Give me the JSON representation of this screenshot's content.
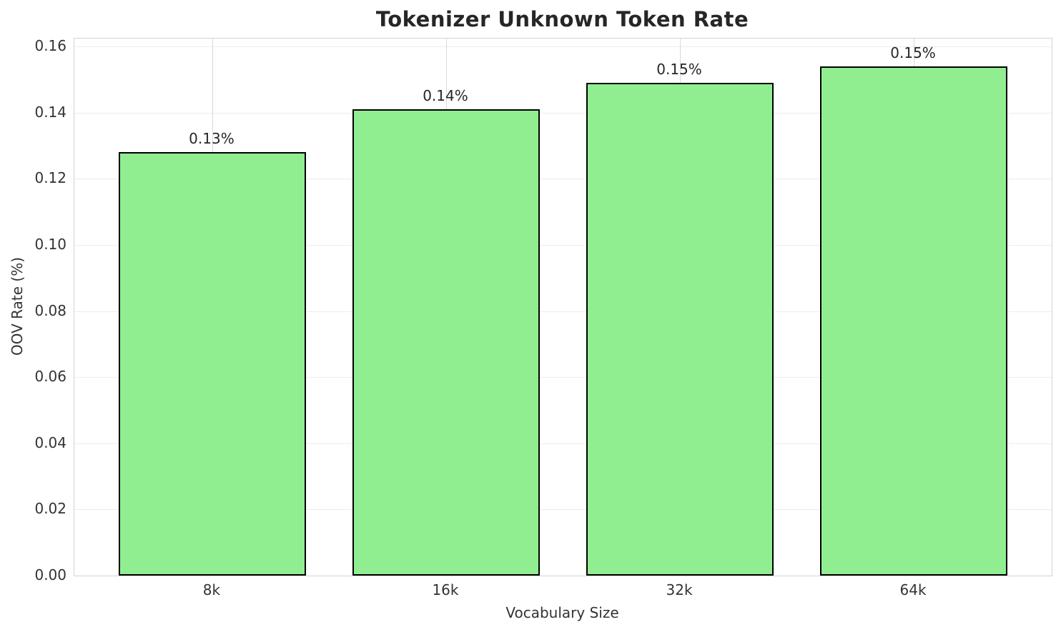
{
  "chart_data": {
    "type": "bar",
    "title": "Tokenizer Unknown Token Rate",
    "xlabel": "Vocabulary Size",
    "ylabel": "OOV Rate (%)",
    "categories": [
      "8k",
      "16k",
      "32k",
      "64k"
    ],
    "values": [
      0.128,
      0.141,
      0.149,
      0.154
    ],
    "bar_labels": [
      "0.13%",
      "0.14%",
      "0.15%",
      "0.15%"
    ],
    "yticks": [
      0.0,
      0.02,
      0.04,
      0.06,
      0.08,
      0.1,
      0.12,
      0.14,
      0.16
    ],
    "ytick_labels": [
      "0.00",
      "0.02",
      "0.04",
      "0.06",
      "0.08",
      "0.10",
      "0.12",
      "0.14",
      "0.16"
    ],
    "ylim": [
      0,
      0.1624
    ],
    "xlim": [
      -0.59,
      3.59
    ],
    "bar_width_units": 0.8,
    "grid": true,
    "legend": "none",
    "bar_color": "#90EE90",
    "bar_edge_color": "#000000",
    "background_color": "#FFFFFF",
    "hgrid_color": "#ECECEC",
    "vgrid_color": "#D9D9D9",
    "spine_color": "#D4D4D4",
    "title_color": "#262626",
    "tick_color": "#333333"
  }
}
